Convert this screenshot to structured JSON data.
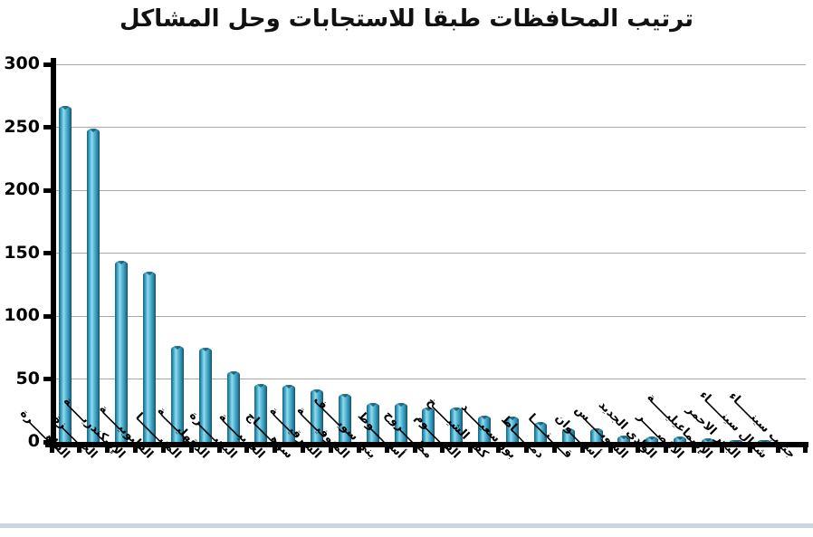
{
  "title": "ترتيب المحافظات طبقا  للاستجابات وحل المشاكل",
  "colors": {
    "background": "#ffffff",
    "title_text": "#111111",
    "axis": "#000000",
    "gridline": "#a8a8a8",
    "bar_highlight": "#8edcee",
    "bar_mid": "#3aa2c4",
    "bar_edge": "#155e7b",
    "bottom_strip": "#c9d6df"
  },
  "chart_data": {
    "type": "bar",
    "title": "ترتيب المحافظات طبقا  للاستجابات وحل المشاكل",
    "categories": [
      "القاهـــــرة",
      "الجيـــــزة",
      "الإسكندريـــــة",
      "القليوبيـــــة",
      "المنيـــــــا",
      "الدقهليـــــة",
      "البحيـــــرة",
      "الغربيـــــة",
      "سوهـــــاج",
      "الشرقيـــــة",
      "المنوفيـــــة",
      "بني سويـــــف",
      "أسيـــــوط",
      "مطـــــروح",
      "الفيـــــوم",
      "كفر الشيـــــخ",
      "بور سعيـــــد",
      "دميـــــاط",
      "قـــــنـــــا",
      "أســـــوان",
      "السويـــــس",
      "الوادي الجديد",
      "الأقصـــــر",
      "الإسماعيليـــــة",
      "البحر الاحمر",
      "شمال سينـــــاء",
      "جنوب سينـــــاء"
    ],
    "values": [
      267,
      249,
      144,
      135,
      76,
      75,
      56,
      46,
      45,
      42,
      38,
      31,
      31,
      27,
      27,
      21,
      20,
      16,
      11,
      11,
      5,
      4,
      4,
      3,
      1,
      1,
      0
    ],
    "ylim": [
      0,
      300
    ],
    "ytick_interval": 50,
    "yticks": [
      300,
      250,
      200,
      150,
      100,
      50,
      0
    ],
    "xlabel": "",
    "ylabel": "",
    "grid": "horizontal",
    "legend": "none",
    "x_label_rotation_deg": 45
  }
}
